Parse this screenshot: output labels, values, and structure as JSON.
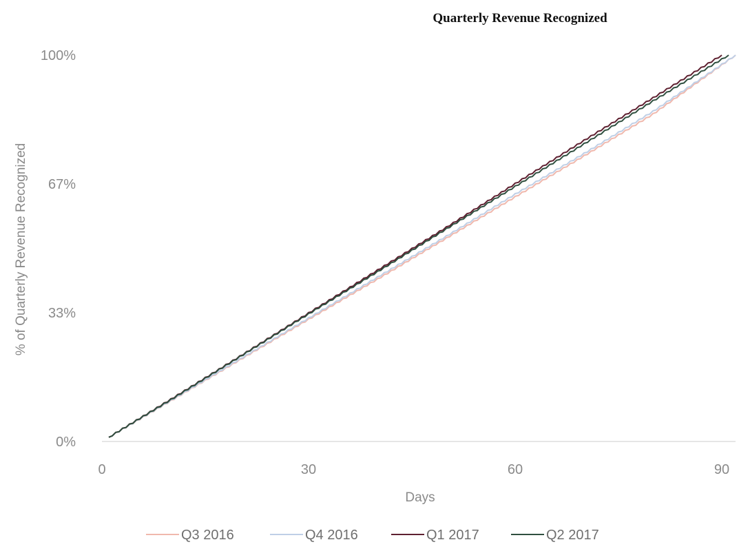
{
  "chart_data": {
    "type": "line",
    "title": "Quarterly Revenue Recognized",
    "xlabel": "Days",
    "ylabel": "% of Quarterly Revenue Recognized",
    "xlim": [
      0,
      92
    ],
    "ylim": [
      0,
      100
    ],
    "x_ticks": [
      0,
      30,
      60,
      90
    ],
    "x_tick_labels": [
      "0",
      "30",
      "60",
      "90"
    ],
    "y_ticks": [
      0,
      33.3,
      66.7,
      100
    ],
    "y_tick_labels": [
      "0%",
      "33%",
      "67%",
      "100%"
    ],
    "grid": false,
    "legend_position": "bottom",
    "series": [
      {
        "name": "Q3 2016",
        "color": "#f0b8ad",
        "end_day": 92,
        "x": [
          1,
          10,
          20,
          30,
          40,
          50,
          60,
          70,
          80,
          92
        ],
        "y": [
          1.1,
          10.5,
          21.1,
          31.6,
          42.0,
          52.6,
          63.3,
          73.9,
          84.7,
          100
        ]
      },
      {
        "name": "Q4 2016",
        "color": "#bfcfe6",
        "end_day": 92,
        "x": [
          1,
          10,
          20,
          30,
          40,
          50,
          60,
          70,
          80,
          92
        ],
        "y": [
          1.1,
          10.6,
          21.3,
          31.9,
          42.5,
          53.1,
          64.0,
          74.5,
          85.4,
          100
        ]
      },
      {
        "name": "Q1 2017",
        "color": "#5e2030",
        "end_day": 90,
        "x": [
          1,
          10,
          20,
          30,
          40,
          50,
          60,
          70,
          80,
          90
        ],
        "y": [
          1.1,
          10.9,
          22.0,
          33.2,
          44.3,
          55.4,
          66.7,
          77.9,
          88.9,
          100
        ]
      },
      {
        "name": "Q2 2017",
        "color": "#2f4f3f",
        "end_day": 91,
        "x": [
          1,
          10,
          20,
          30,
          40,
          50,
          60,
          70,
          80,
          91
        ],
        "y": [
          1.1,
          10.8,
          21.9,
          33.0,
          43.9,
          55.0,
          66.0,
          77.0,
          88.1,
          100
        ]
      }
    ]
  }
}
